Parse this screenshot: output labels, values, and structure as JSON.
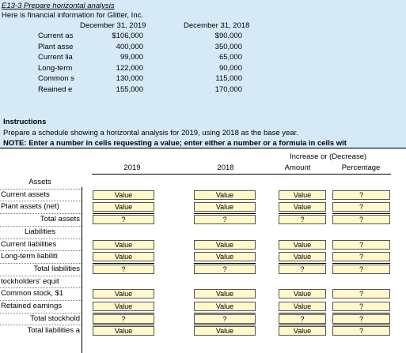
{
  "title": "E13-3  Prepare horizontal analysis",
  "intro": "Here is financial information for Glitter, Inc.",
  "dates": [
    "December 31, 2019",
    "December 31, 2018"
  ],
  "info_rows": [
    {
      "label": "Current as",
      "v2019": "$106,000",
      "v2018": "$90,000"
    },
    {
      "label": "Plant asse",
      "v2019": "400,000",
      "v2018": "350,000"
    },
    {
      "label": "Current lia",
      "v2019": "99,000",
      "v2018": "65,000"
    },
    {
      "label": "Long-term",
      "v2019": "122,000",
      "v2018": "90,000"
    },
    {
      "label": "Common s",
      "v2019": "130,000",
      "v2018": "115,000"
    },
    {
      "label": "Reained e",
      "v2019": "155,000",
      "v2018": "170,000"
    }
  ],
  "instructions_heading": "Instructions",
  "instructions_text": "Prepare a schedule showing a horizontal analysis for 2019, using 2018 as the base year.",
  "note": "NOTE:  Enter a number in cells requesting a value; enter either a number or a formula in cells wit",
  "group_header": "Increase or (Decrease)",
  "columns": {
    "y2019": "2019",
    "y2018": "2018",
    "amount": "Amount",
    "percentage": "Percentage"
  },
  "schedule": [
    {
      "label": "Assets",
      "indent": "center",
      "cells": null
    },
    {
      "label": "Current assets",
      "indent": "left",
      "cells": [
        "Value",
        "Value",
        "Value",
        "?"
      ]
    },
    {
      "label": "Plant assets (net)",
      "indent": "left",
      "cells": [
        "Value",
        "Value",
        "Value",
        "?"
      ]
    },
    {
      "label": "Total assets",
      "indent": "total",
      "cells": [
        "?",
        "?",
        "?",
        "?"
      ]
    },
    {
      "label": "Liabilities",
      "indent": "center",
      "cells": null
    },
    {
      "label": "Current liabilities",
      "indent": "left",
      "cells": [
        "Value",
        "Value",
        "Value",
        "?"
      ]
    },
    {
      "label": "Long-term liabiliti",
      "indent": "left",
      "cells": [
        "Value",
        "Value",
        "Value",
        "?"
      ]
    },
    {
      "label": "Total liabilities",
      "indent": "total",
      "cells": [
        "?",
        "?",
        "?",
        "?"
      ]
    },
    {
      "label": "tockholders' equit",
      "indent": "left",
      "cells": null
    },
    {
      "label": "Common stock, $1",
      "indent": "left",
      "cells": [
        "Value",
        "Value",
        "Value",
        "?"
      ]
    },
    {
      "label": "Retained earnings",
      "indent": "left",
      "cells": [
        "Value",
        "Value",
        "Value",
        "?"
      ]
    },
    {
      "label": "Total stockhold",
      "indent": "total",
      "cells": [
        "?",
        "?",
        "?",
        "?"
      ]
    },
    {
      "label": "Total liabilities a",
      "indent": "total",
      "cells": [
        "Value",
        "Value",
        "Value",
        "?"
      ]
    }
  ],
  "colors": {
    "info_bg": "#d6e9f6",
    "input_bg": "#fff8c8"
  }
}
